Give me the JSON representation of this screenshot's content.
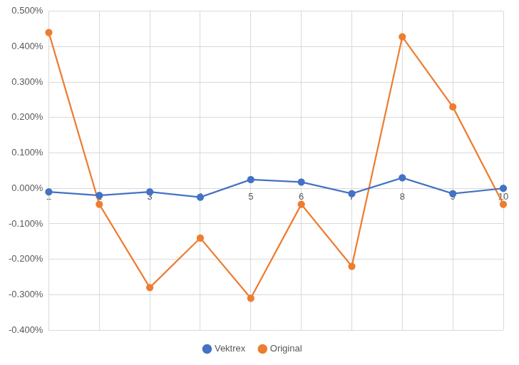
{
  "chart_data": {
    "type": "line",
    "categories": [
      "1",
      "2",
      "3",
      "4",
      "5",
      "6",
      "7",
      "8",
      "9",
      "10"
    ],
    "series": [
      {
        "name": "Vektrex",
        "color": "#4472c4",
        "marker": "circle",
        "values": [
          -0.01,
          -0.02,
          -0.01,
          -0.025,
          0.025,
          0.018,
          -0.015,
          0.03,
          -0.015,
          0.0
        ]
      },
      {
        "name": "Original",
        "color": "#ed7d31",
        "marker": "circle",
        "values": [
          0.44,
          -0.045,
          -0.28,
          -0.14,
          -0.31,
          -0.045,
          -0.22,
          0.428,
          0.23,
          -0.045
        ]
      }
    ],
    "ylim": [
      -0.4,
      0.5
    ],
    "yticks": [
      {
        "value": -0.4,
        "label": "-0.400%"
      },
      {
        "value": -0.3,
        "label": "-0.300%"
      },
      {
        "value": -0.2,
        "label": "-0.200%"
      },
      {
        "value": -0.1,
        "label": "-0.100%"
      },
      {
        "value": 0,
        "label": "0.000%"
      },
      {
        "value": 0.1,
        "label": "0.100%"
      },
      {
        "value": 0.2,
        "label": "0.200%"
      },
      {
        "value": 0.3,
        "label": "0.300%"
      },
      {
        "value": 0.4,
        "label": "0.400%"
      },
      {
        "value": 0.5,
        "label": "0.500%"
      }
    ],
    "grid": true,
    "legend": "bottom"
  }
}
